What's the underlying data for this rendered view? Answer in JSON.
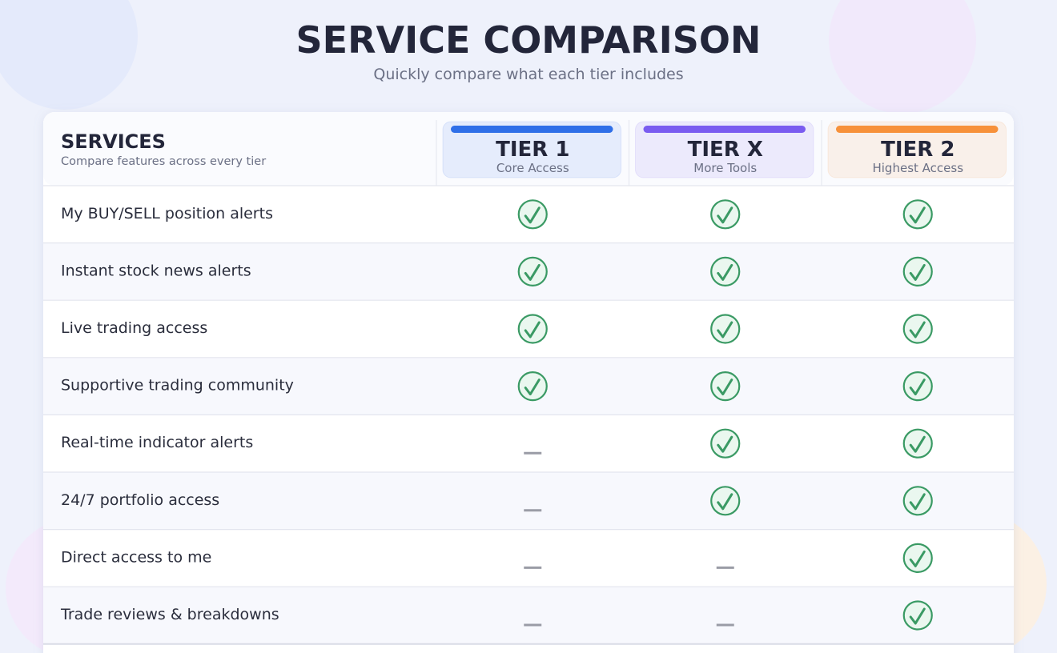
{
  "header": {
    "title": "SERVICE COMPARISON",
    "subtitle": "Quickly compare what each tier includes"
  },
  "table": {
    "services_title": "SERVICES",
    "services_subtitle": "Compare features across every tier",
    "tiers": [
      {
        "name": "TIER 1",
        "subtitle": "Core Access",
        "color": "#2f6fe8"
      },
      {
        "name": "TIER X",
        "subtitle": "More Tools",
        "color": "#7a5cf0"
      },
      {
        "name": "TIER 2",
        "subtitle": "Highest Access",
        "color": "#f7913a"
      }
    ],
    "rows": [
      {
        "feature": "My BUY/SELL position alerts",
        "included": [
          true,
          true,
          true
        ]
      },
      {
        "feature": "Instant stock news alerts",
        "included": [
          true,
          true,
          true
        ]
      },
      {
        "feature": "Live trading access",
        "included": [
          true,
          true,
          true
        ]
      },
      {
        "feature": "Supportive trading community",
        "included": [
          true,
          true,
          true
        ]
      },
      {
        "feature": "Real-time indicator alerts",
        "included": [
          false,
          true,
          true
        ]
      },
      {
        "feature": "24/7 portfolio access",
        "included": [
          false,
          true,
          true
        ]
      },
      {
        "feature": "Direct access to me",
        "included": [
          false,
          false,
          true
        ]
      },
      {
        "feature": "Trade reviews & breakdowns",
        "included": [
          false,
          false,
          true
        ]
      }
    ]
  }
}
